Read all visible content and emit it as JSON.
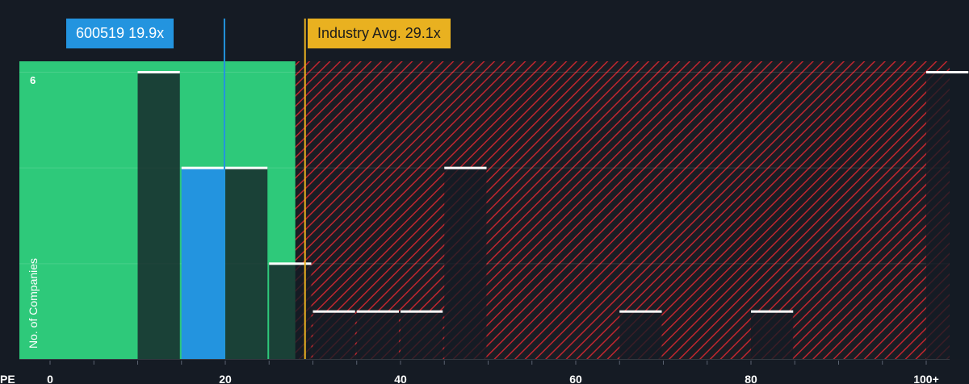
{
  "chart_data": {
    "type": "bar",
    "xlabel": "PE",
    "ylabel": "No. of Companies",
    "xlim": [
      0,
      100
    ],
    "ylim": [
      0,
      6
    ],
    "grid": true,
    "x_ticks": [
      {
        "value": 0,
        "label": "0"
      },
      {
        "value": 20,
        "label": "20"
      },
      {
        "value": 40,
        "label": "40"
      },
      {
        "value": 60,
        "label": "60"
      },
      {
        "value": 80,
        "label": "80"
      },
      {
        "value": 100,
        "label": "100+"
      }
    ],
    "y_ticks": [
      {
        "value": 6,
        "label": "6"
      }
    ],
    "bins": [
      {
        "start": 10,
        "end": 15,
        "count": 6
      },
      {
        "start": 15,
        "end": 20,
        "count": 4,
        "highlight": true
      },
      {
        "start": 20,
        "end": 25,
        "count": 4
      },
      {
        "start": 25,
        "end": 30,
        "count": 2
      },
      {
        "start": 30,
        "end": 35,
        "count": 1
      },
      {
        "start": 35,
        "end": 40,
        "count": 1
      },
      {
        "start": 40,
        "end": 45,
        "count": 1
      },
      {
        "start": 45,
        "end": 50,
        "count": 4
      },
      {
        "start": 65,
        "end": 70,
        "count": 1
      },
      {
        "start": 80,
        "end": 85,
        "count": 1
      },
      {
        "start": 100,
        "end": 105,
        "count": 6
      }
    ],
    "company": {
      "label": "600519 19.9x",
      "value": 19.9,
      "color": "#2394df"
    },
    "industry_avg": {
      "label": "Industry Avg. 29.1x",
      "value": 29.1,
      "color": "#e9b120"
    },
    "undervalued_zone": {
      "from": 0,
      "to": 28,
      "color": "#2ec97a"
    },
    "overvalued_zone": {
      "from": 28,
      "to": 105,
      "color": "#c0262f"
    }
  }
}
